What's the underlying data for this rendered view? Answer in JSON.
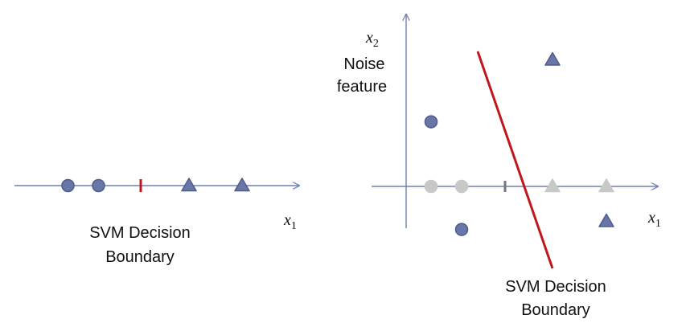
{
  "left_panel": {
    "axis_label": {
      "var": "x",
      "sub": "1"
    },
    "caption_line1": "SVM Decision",
    "caption_line2": "Boundary",
    "points": [
      {
        "shape": "circle",
        "x": 1
      },
      {
        "shape": "circle",
        "x": 2
      },
      {
        "shape": "triangle",
        "x": 4
      },
      {
        "shape": "triangle",
        "x": 5
      }
    ],
    "boundary_x": 3
  },
  "right_panel": {
    "x_axis_label": {
      "var": "x",
      "sub": "1"
    },
    "y_axis_label": {
      "var": "x",
      "sub": "2"
    },
    "y_label_line1": "Noise",
    "y_label_line2": "feature",
    "caption_line1": "SVM Decision",
    "caption_line2": "Boundary",
    "projected_points": [
      {
        "shape": "circle",
        "x": 1
      },
      {
        "shape": "circle",
        "x": 2
      },
      {
        "shape": "triangle",
        "x": 4
      },
      {
        "shape": "triangle",
        "x": 5
      }
    ],
    "projected_boundary_x": 3,
    "points_2d": [
      {
        "shape": "circle",
        "x": 1,
        "y": 2.4
      },
      {
        "shape": "circle",
        "x": 2,
        "y": -1.6
      },
      {
        "shape": "triangle",
        "x": 4,
        "y": 4.7
      },
      {
        "shape": "triangle",
        "x": 5,
        "y": -1.3
      }
    ]
  },
  "colors": {
    "axis": "#6f80b3",
    "point_fill": "#6876a8",
    "point_stroke": "#4e5b8c",
    "projected": "#c8c8c8",
    "projected_boundary": "#777777",
    "boundary": "#c0171d",
    "text": "#111111"
  }
}
